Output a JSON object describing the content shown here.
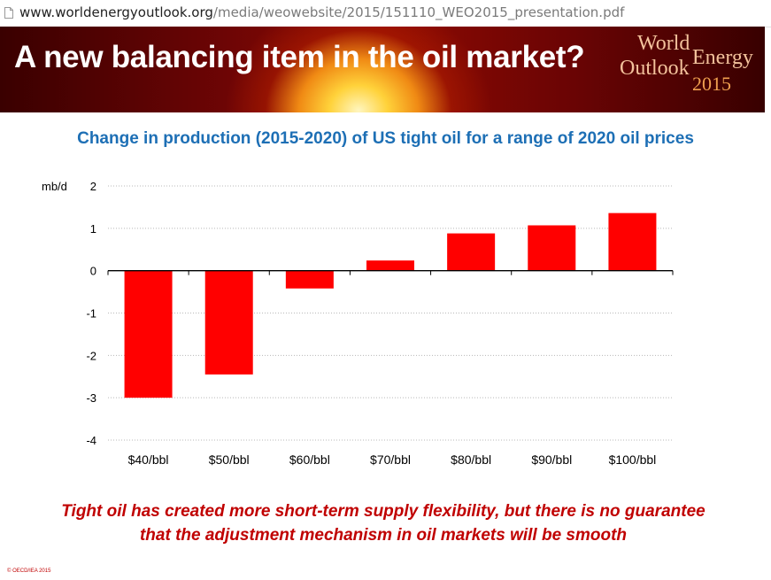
{
  "browser": {
    "url_host": "www.worldenergyoutlook.org",
    "url_path": "/media/weowebsite/2015/151110_WEO2015_presentation.pdf"
  },
  "slide": {
    "title": "A new balancing item in the oil market?",
    "logo": {
      "line1": "World",
      "line2": "Outlook",
      "line3": "Energy",
      "year": "2015",
      "color": "#f3c29c"
    },
    "caption_line1": "Tight oil has created more short-term supply flexibility, but there is no guarantee",
    "caption_line2": "that the adjustment mechanism in oil markets will be smooth",
    "copyright": "© OECD/IEA 2015"
  },
  "chart_data": {
    "type": "bar",
    "title": "Change in production (2015-2020) of US tight oil for a range of 2020 oil prices",
    "ylabel": "mb/d",
    "categories": [
      "$40/bbl",
      "$50/bbl",
      "$60/bbl",
      "$70/bbl",
      "$80/bbl",
      "$90/bbl",
      "$100/bbl"
    ],
    "values": [
      -3.0,
      -2.45,
      -0.42,
      0.24,
      0.88,
      1.07,
      1.36
    ],
    "ylim": [
      -4,
      2
    ],
    "yticks": [
      2,
      1,
      0,
      -1,
      -2,
      -3,
      -4
    ],
    "grid": true,
    "bar_color": "#ff0000",
    "title_color": "#1d6fb5"
  }
}
